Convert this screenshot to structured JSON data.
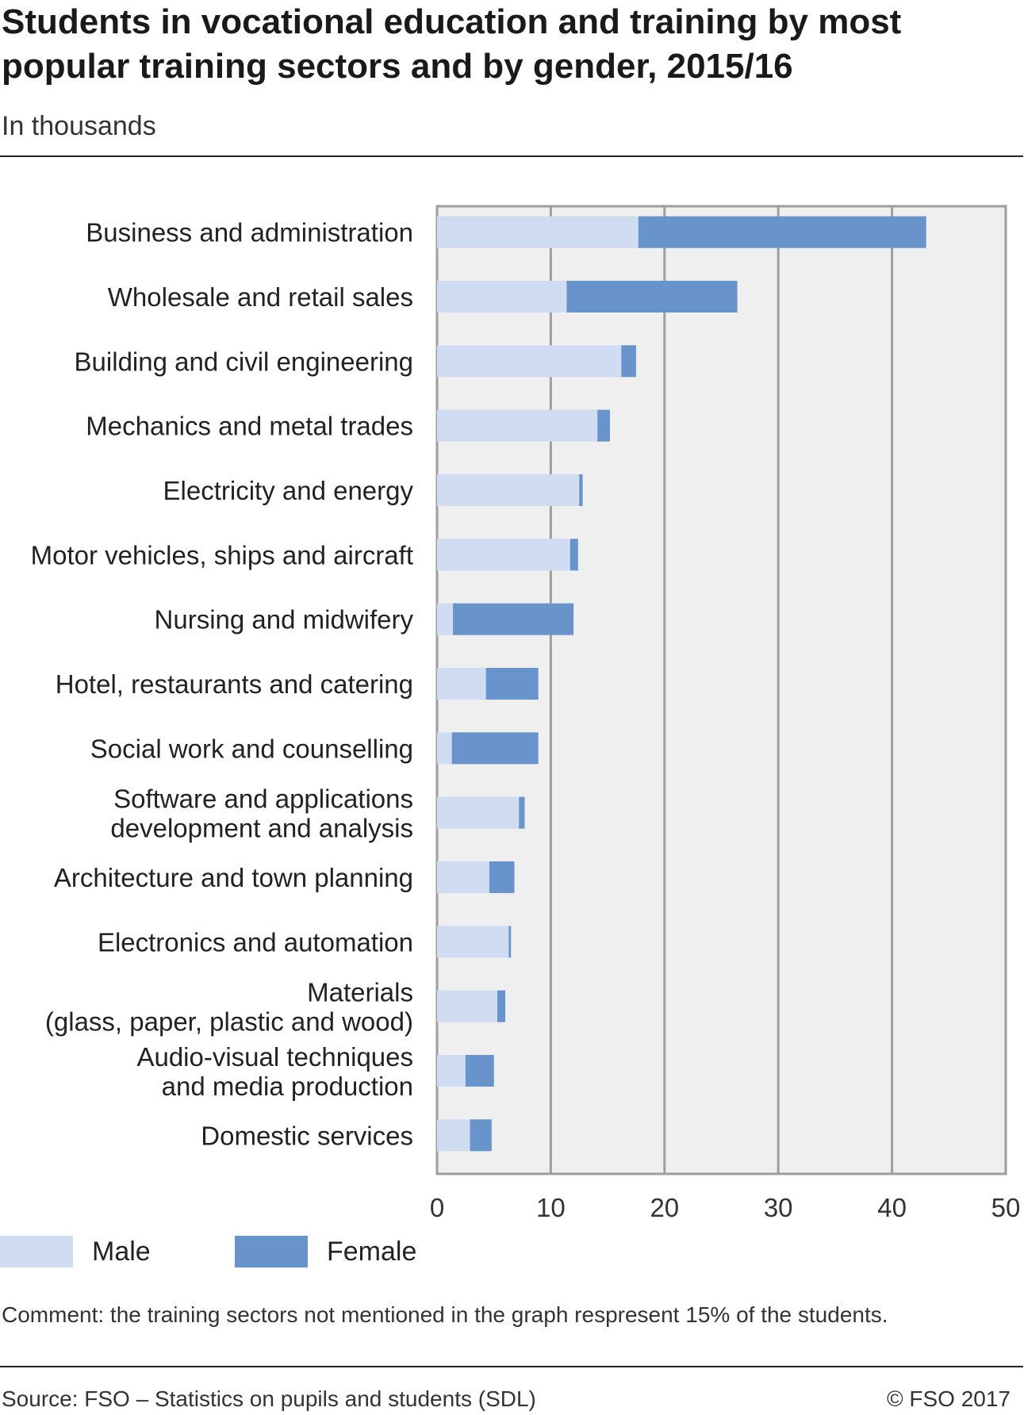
{
  "chart_data": {
    "type": "bar",
    "stacked": true,
    "orientation": "horizontal",
    "title": "Students in vocational education and training by most popular training sectors and by gender, 2015/16",
    "subtitle": "In thousands",
    "categories": [
      "Business and administration",
      "Wholesale and retail sales",
      "Building and civil engineering",
      "Mechanics and metal trades",
      "Electricity and energy",
      "Motor vehicles, ships and aircraft",
      "Nursing and midwifery",
      "Hotel, restaurants and catering",
      "Social work and counselling",
      "Software and applications\ndevelopment and analysis",
      "Architecture and town planning",
      "Electronics and automation",
      "Materials\n(glass, paper, plastic and wood)",
      "Audio-visual techniques\nand media production",
      "Domestic services"
    ],
    "series": [
      {
        "name": "Male",
        "color": "#cfdcf1",
        "values": [
          17.7,
          11.4,
          16.2,
          14.1,
          12.5,
          11.7,
          1.4,
          4.3,
          1.3,
          7.2,
          4.6,
          6.3,
          5.3,
          2.5,
          2.9
        ]
      },
      {
        "name": "Female",
        "color": "#6893cb",
        "values": [
          25.3,
          15.0,
          1.3,
          1.1,
          0.3,
          0.7,
          10.6,
          4.6,
          7.6,
          0.5,
          2.2,
          0.2,
          0.7,
          2.5,
          1.9
        ]
      }
    ],
    "xlabel": "",
    "ylabel": "",
    "xlim": [
      0,
      50
    ],
    "xticks": [
      0,
      10,
      20,
      30,
      40,
      50
    ],
    "grid": true,
    "legend": "bottom-left"
  },
  "legend": {
    "male": "Male",
    "female": "Female"
  },
  "comment": "Comment: the training sectors not mentioned in the graph respresent 15% of the students.",
  "source": "Source: FSO – Statistics on pupils and students (SDL)",
  "copyright": "© FSO 2017"
}
